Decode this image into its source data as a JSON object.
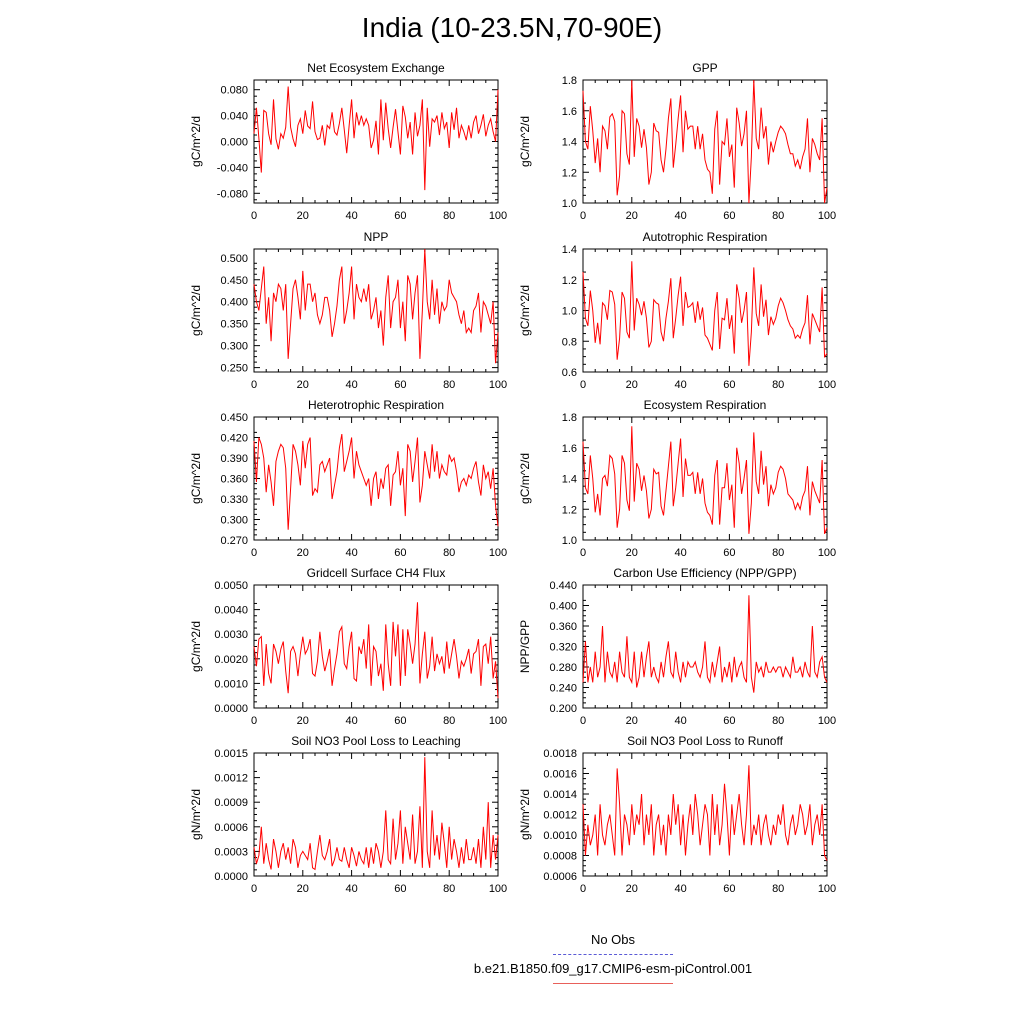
{
  "page_title": "India (10-23.5N,70-90E)",
  "legend": {
    "obs_label": "No Obs",
    "obs_color": "#5b5bd6",
    "model_label": "b.e21.B1850.f09_g17.CMIP6-esm-piControl.001",
    "model_color": "#e8605a"
  },
  "line_color": "#ff0000",
  "chart_data": [
    {
      "type": "line",
      "title": "Net Ecosystem Exchange",
      "ylabel": "gC/m^2/d",
      "xlim": [
        0,
        100
      ],
      "ylim": [
        -0.095,
        0.095
      ],
      "x_ticks": [
        0,
        20,
        40,
        60,
        80,
        100
      ],
      "y_ticks": [
        "-0.080",
        "-0.040",
        "0.000",
        "0.040",
        "0.080"
      ],
      "values": [
        0.012,
        0.052,
        0.005,
        -0.048,
        0.048,
        0.045,
        0.012,
        -0.005,
        0.065,
        0.004,
        -0.012,
        0.012,
        0.005,
        0.022,
        0.085,
        0.022,
        0.004,
        -0.008,
        0.025,
        0.035,
        0.012,
        0.048,
        0.024,
        0.02,
        0.062,
        0.015,
        0.003,
        0.005,
        0.025,
        -0.006,
        0.025,
        0.02,
        0.045,
        0.015,
        0.01,
        0.028,
        0.052,
        0.018,
        -0.018,
        0.025,
        0.065,
        0.005,
        0.045,
        0.025,
        0.04,
        0.025,
        0.035,
        0.025,
        -0.01,
        0.002,
        0.032,
        -0.02,
        0.065,
        0.002,
        0.06,
        0.02,
        -0.01,
        0.022,
        0.05,
        0.015,
        -0.02,
        0.055,
        0.038,
        0.005,
        0.03,
        -0.02,
        0.045,
        0.008,
        0.025,
        0.065,
        -0.075,
        0.052,
        -0.008,
        0.035,
        0.03,
        0.04,
        0.01,
        0.045,
        0.02,
        0.03,
        -0.01,
        0.045,
        0.018,
        0.052,
        0.005,
        0.025,
        0.015,
        0.002,
        0.025,
        0.005,
        0.03,
        0.04,
        0.012,
        0.025,
        0.042,
        0.008,
        0.025,
        0.035,
        0.015,
        0.0,
        0.08
      ]
    },
    {
      "type": "line",
      "title": "GPP",
      "ylabel": "gC/m^2/d",
      "xlim": [
        0,
        100
      ],
      "ylim": [
        1.0,
        1.8
      ],
      "x_ticks": [
        0,
        20,
        40,
        60,
        80,
        100
      ],
      "y_ticks": [
        "1.0",
        "1.2",
        "1.4",
        "1.6",
        "1.8"
      ],
      "values": [
        1.73,
        1.4,
        1.35,
        1.63,
        1.47,
        1.26,
        1.42,
        1.2,
        1.5,
        1.47,
        1.35,
        1.56,
        1.58,
        1.53,
        1.05,
        1.18,
        1.6,
        1.58,
        1.32,
        1.25,
        1.8,
        1.3,
        1.55,
        1.5,
        1.36,
        1.48,
        1.36,
        1.12,
        1.2,
        1.52,
        1.47,
        1.46,
        1.28,
        1.2,
        1.35,
        1.55,
        1.68,
        1.23,
        1.38,
        1.55,
        1.7,
        1.33,
        1.6,
        1.48,
        1.5,
        1.5,
        1.35,
        1.5,
        1.35,
        1.45,
        1.28,
        1.22,
        1.2,
        1.06,
        1.48,
        1.6,
        1.12,
        1.4,
        1.38,
        1.55,
        1.3,
        1.38,
        1.1,
        1.62,
        1.52,
        1.37,
        1.45,
        1.6,
        1.0,
        1.3,
        1.8,
        1.42,
        1.35,
        1.62,
        1.42,
        1.5,
        1.25,
        1.4,
        1.33,
        1.4,
        1.46,
        1.5,
        1.48,
        1.45,
        1.38,
        1.32,
        1.32,
        1.24,
        1.28,
        1.22,
        1.3,
        1.35,
        1.55,
        1.2,
        1.42,
        1.38,
        1.32,
        1.28,
        1.55,
        1.0,
        1.1
      ]
    },
    {
      "type": "line",
      "title": "NPP",
      "ylabel": "gC/m^2/d",
      "xlim": [
        0,
        100
      ],
      "ylim": [
        0.24,
        0.52
      ],
      "x_ticks": [
        0,
        20,
        40,
        60,
        80,
        100
      ],
      "y_ticks": [
        "0.250",
        "0.300",
        "0.350",
        "0.400",
        "0.450",
        "0.500"
      ],
      "values": [
        0.44,
        0.4,
        0.38,
        0.43,
        0.48,
        0.35,
        0.41,
        0.31,
        0.42,
        0.4,
        0.44,
        0.43,
        0.38,
        0.44,
        0.27,
        0.35,
        0.43,
        0.45,
        0.41,
        0.36,
        0.47,
        0.38,
        0.44,
        0.44,
        0.4,
        0.42,
        0.37,
        0.35,
        0.37,
        0.41,
        0.41,
        0.38,
        0.32,
        0.35,
        0.39,
        0.45,
        0.48,
        0.35,
        0.38,
        0.42,
        0.48,
        0.36,
        0.44,
        0.41,
        0.4,
        0.43,
        0.4,
        0.44,
        0.36,
        0.38,
        0.41,
        0.34,
        0.38,
        0.3,
        0.41,
        0.46,
        0.34,
        0.4,
        0.41,
        0.45,
        0.34,
        0.4,
        0.31,
        0.46,
        0.44,
        0.36,
        0.42,
        0.46,
        0.27,
        0.38,
        0.52,
        0.4,
        0.36,
        0.45,
        0.37,
        0.43,
        0.35,
        0.4,
        0.38,
        0.39,
        0.45,
        0.42,
        0.41,
        0.4,
        0.37,
        0.35,
        0.38,
        0.33,
        0.34,
        0.33,
        0.38,
        0.39,
        0.42,
        0.33,
        0.4,
        0.39,
        0.37,
        0.35,
        0.4,
        0.26,
        0.33
      ]
    },
    {
      "type": "line",
      "title": "Autotrophic Respiration",
      "ylabel": "gC/m^2/d",
      "xlim": [
        0,
        100
      ],
      "ylim": [
        0.6,
        1.4
      ],
      "x_ticks": [
        0,
        20,
        40,
        60,
        80,
        100
      ],
      "y_ticks": [
        "0.6",
        "0.8",
        "1.0",
        "1.2",
        "1.4"
      ],
      "values": [
        1.25,
        0.95,
        0.9,
        1.13,
        1.0,
        0.79,
        0.92,
        0.78,
        1.05,
        1.03,
        0.94,
        1.13,
        1.12,
        1.04,
        0.68,
        0.82,
        1.12,
        1.08,
        0.86,
        0.82,
        1.32,
        0.87,
        1.08,
        1.04,
        0.97,
        1.06,
        0.95,
        0.76,
        0.8,
        1.07,
        1.05,
        1.04,
        0.86,
        0.8,
        0.95,
        1.06,
        1.21,
        0.82,
        0.95,
        1.1,
        1.22,
        0.9,
        1.12,
        1.02,
        1.03,
        1.05,
        0.92,
        1.06,
        0.94,
        1.02,
        0.84,
        0.82,
        0.78,
        0.74,
        1.0,
        1.12,
        0.75,
        0.95,
        0.94,
        1.08,
        0.88,
        0.97,
        0.72,
        1.17,
        1.08,
        0.92,
        1.0,
        1.12,
        0.64,
        0.86,
        1.28,
        0.98,
        0.9,
        1.17,
        0.96,
        1.07,
        0.84,
        0.96,
        0.91,
        0.95,
        1.03,
        1.08,
        1.05,
        1.0,
        0.94,
        0.9,
        0.88,
        0.82,
        0.84,
        0.82,
        0.88,
        0.92,
        1.1,
        0.78,
        0.98,
        0.94,
        0.9,
        0.86,
        1.15,
        0.7,
        0.72
      ]
    },
    {
      "type": "line",
      "title": "Heterotrophic Respiration",
      "ylabel": "gC/m^2/d",
      "xlim": [
        0,
        100
      ],
      "ylim": [
        0.27,
        0.45
      ],
      "x_ticks": [
        0,
        20,
        40,
        60,
        80,
        100
      ],
      "y_ticks": [
        "0.270",
        "0.300",
        "0.330",
        "0.360",
        "0.390",
        "0.420",
        "0.450"
      ],
      "values": [
        0.415,
        0.355,
        0.42,
        0.41,
        0.39,
        0.34,
        0.38,
        0.355,
        0.32,
        0.385,
        0.4,
        0.41,
        0.405,
        0.375,
        0.285,
        0.345,
        0.41,
        0.4,
        0.38,
        0.35,
        0.415,
        0.375,
        0.41,
        0.42,
        0.335,
        0.345,
        0.34,
        0.38,
        0.385,
        0.37,
        0.38,
        0.39,
        0.33,
        0.35,
        0.37,
        0.405,
        0.425,
        0.37,
        0.385,
        0.4,
        0.42,
        0.36,
        0.4,
        0.38,
        0.37,
        0.36,
        0.35,
        0.36,
        0.32,
        0.36,
        0.37,
        0.33,
        0.36,
        0.345,
        0.375,
        0.38,
        0.32,
        0.365,
        0.37,
        0.4,
        0.35,
        0.375,
        0.305,
        0.41,
        0.4,
        0.355,
        0.385,
        0.42,
        0.325,
        0.35,
        0.4,
        0.38,
        0.36,
        0.41,
        0.37,
        0.4,
        0.36,
        0.38,
        0.37,
        0.365,
        0.395,
        0.385,
        0.39,
        0.37,
        0.34,
        0.355,
        0.36,
        0.35,
        0.365,
        0.36,
        0.375,
        0.385,
        0.355,
        0.335,
        0.38,
        0.36,
        0.37,
        0.345,
        0.375,
        0.32,
        0.29
      ]
    },
    {
      "type": "line",
      "title": "Ecosystem Respiration",
      "ylabel": "gC/m^2/d",
      "xlim": [
        0,
        100
      ],
      "ylim": [
        1.0,
        1.8
      ],
      "x_ticks": [
        0,
        20,
        40,
        60,
        80,
        100
      ],
      "y_ticks": [
        "1.0",
        "1.2",
        "1.4",
        "1.6",
        "1.8"
      ],
      "values": [
        1.64,
        1.34,
        1.3,
        1.55,
        1.4,
        1.18,
        1.3,
        1.16,
        1.4,
        1.42,
        1.35,
        1.55,
        1.53,
        1.43,
        1.08,
        1.2,
        1.55,
        1.5,
        1.26,
        1.19,
        1.74,
        1.25,
        1.5,
        1.46,
        1.32,
        1.42,
        1.32,
        1.14,
        1.2,
        1.46,
        1.43,
        1.44,
        1.22,
        1.16,
        1.32,
        1.48,
        1.64,
        1.22,
        1.34,
        1.5,
        1.66,
        1.28,
        1.53,
        1.42,
        1.42,
        1.44,
        1.3,
        1.44,
        1.3,
        1.4,
        1.24,
        1.18,
        1.16,
        1.1,
        1.42,
        1.52,
        1.1,
        1.34,
        1.34,
        1.5,
        1.26,
        1.36,
        1.08,
        1.6,
        1.5,
        1.3,
        1.4,
        1.52,
        1.04,
        1.24,
        1.7,
        1.38,
        1.3,
        1.58,
        1.36,
        1.48,
        1.22,
        1.36,
        1.3,
        1.34,
        1.44,
        1.48,
        1.46,
        1.4,
        1.3,
        1.28,
        1.26,
        1.2,
        1.24,
        1.2,
        1.28,
        1.32,
        1.48,
        1.16,
        1.38,
        1.32,
        1.28,
        1.24,
        1.52,
        1.04,
        1.08
      ]
    },
    {
      "type": "line",
      "title": "Gridcell Surface CH4 Flux",
      "ylabel": "gC/m^2/d",
      "xlim": [
        0,
        100
      ],
      "ylim": [
        0.0,
        0.005
      ],
      "x_ticks": [
        0,
        20,
        40,
        60,
        80,
        100
      ],
      "y_ticks": [
        "0.0000",
        "0.0010",
        "0.0020",
        "0.0030",
        "0.0040",
        "0.0050"
      ],
      "values": [
        0.0025,
        0.0017,
        0.0028,
        0.0029,
        0.0009,
        0.0026,
        0.0014,
        0.001,
        0.0026,
        0.0023,
        0.0018,
        0.0024,
        0.0027,
        0.0015,
        0.0006,
        0.0023,
        0.0025,
        0.0022,
        0.0013,
        0.0022,
        0.0029,
        0.0022,
        0.0024,
        0.0028,
        0.0014,
        0.0013,
        0.0019,
        0.0031,
        0.0021,
        0.0015,
        0.0019,
        0.0024,
        0.0009,
        0.0016,
        0.0022,
        0.0031,
        0.0033,
        0.0018,
        0.0016,
        0.0025,
        0.0031,
        0.0012,
        0.0011,
        0.0025,
        0.0022,
        0.0028,
        0.0016,
        0.0034,
        0.0009,
        0.0025,
        0.0023,
        0.0013,
        0.0018,
        0.0007,
        0.0034,
        0.0018,
        0.0009,
        0.0035,
        0.0021,
        0.0034,
        0.0009,
        0.0032,
        0.0013,
        0.0032,
        0.0026,
        0.0018,
        0.0026,
        0.0043,
        0.001,
        0.0022,
        0.0031,
        0.0012,
        0.0017,
        0.0029,
        0.0015,
        0.0022,
        0.0018,
        0.0021,
        0.0014,
        0.0027,
        0.0016,
        0.0022,
        0.0028,
        0.0021,
        0.0012,
        0.0019,
        0.0017,
        0.002,
        0.0024,
        0.0014,
        0.0022,
        0.0023,
        0.0028,
        0.0009,
        0.0025,
        0.0026,
        0.0018,
        0.0029,
        0.0012,
        0.0019,
        0.0004
      ]
    },
    {
      "type": "line",
      "title": "Carbon Use Efficiency (NPP/GPP)",
      "ylabel": "NPP/GPP",
      "xlim": [
        0,
        100
      ],
      "ylim": [
        0.2,
        0.44
      ],
      "x_ticks": [
        0,
        20,
        40,
        60,
        80,
        100
      ],
      "y_ticks": [
        "0.200",
        "0.240",
        "0.280",
        "0.320",
        "0.360",
        "0.400",
        "0.440"
      ],
      "values": [
        0.25,
        0.33,
        0.25,
        0.28,
        0.25,
        0.31,
        0.26,
        0.28,
        0.36,
        0.25,
        0.31,
        0.27,
        0.26,
        0.29,
        0.25,
        0.31,
        0.27,
        0.26,
        0.34,
        0.26,
        0.25,
        0.31,
        0.24,
        0.26,
        0.31,
        0.26,
        0.3,
        0.33,
        0.26,
        0.28,
        0.26,
        0.25,
        0.29,
        0.26,
        0.3,
        0.33,
        0.27,
        0.26,
        0.31,
        0.27,
        0.25,
        0.29,
        0.26,
        0.29,
        0.28,
        0.28,
        0.29,
        0.27,
        0.26,
        0.28,
        0.33,
        0.26,
        0.25,
        0.29,
        0.26,
        0.29,
        0.32,
        0.25,
        0.28,
        0.26,
        0.29,
        0.25,
        0.3,
        0.26,
        0.28,
        0.29,
        0.26,
        0.25,
        0.42,
        0.26,
        0.23,
        0.29,
        0.27,
        0.28,
        0.26,
        0.29,
        0.27,
        0.27,
        0.28,
        0.27,
        0.28,
        0.28,
        0.26,
        0.28,
        0.27,
        0.26,
        0.3,
        0.27,
        0.27,
        0.28,
        0.26,
        0.29,
        0.27,
        0.26,
        0.36,
        0.27,
        0.26,
        0.29,
        0.3,
        0.26,
        0.25
      ]
    },
    {
      "type": "line",
      "title": "Soil NO3 Pool Loss to Leaching",
      "ylabel": "gN/m^2/d",
      "xlim": [
        0,
        100
      ],
      "ylim": [
        0.0,
        0.0015
      ],
      "x_ticks": [
        0,
        20,
        40,
        60,
        80,
        100
      ],
      "y_ticks": [
        "0.0000",
        "0.0003",
        "0.0006",
        "0.0009",
        "0.0012",
        "0.0015"
      ],
      "values": [
        0.00035,
        0.00015,
        0.00025,
        0.0006,
        0.00015,
        0.0004,
        0.0002,
        8e-05,
        0.00045,
        0.0003,
        0.0001,
        0.0003,
        0.0004,
        0.0002,
        0.00035,
        0.00015,
        0.00045,
        0.00035,
        0.0001,
        0.00025,
        0.0003,
        0.00025,
        0.0002,
        0.0004,
        0.0001,
        8e-05,
        0.0003,
        0.0005,
        0.00025,
        0.0002,
        0.0003,
        0.00045,
        0.00012,
        0.0002,
        0.00035,
        0.0002,
        0.00018,
        0.00035,
        0.0002,
        0.0001,
        0.00035,
        0.00025,
        0.00012,
        0.0003,
        0.0002,
        0.00015,
        0.00035,
        0.0001,
        0.00035,
        0.00015,
        0.0004,
        0.0003,
        0.0001,
        0.0003,
        0.0008,
        0.0002,
        0.00015,
        0.0007,
        0.0002,
        0.0004,
        0.0008,
        0.00015,
        0.0006,
        0.0004,
        0.0002,
        0.00075,
        0.00015,
        0.0003,
        0.00085,
        0.0001,
        0.00145,
        0.0003,
        0.0001,
        0.0008,
        0.00025,
        0.0005,
        0.0002,
        0.00065,
        0.0004,
        0.0001,
        0.0006,
        0.0002,
        0.00045,
        0.0003,
        0.0001,
        0.00035,
        0.00015,
        0.00045,
        0.0002,
        0.0002,
        0.00035,
        0.00015,
        0.00045,
        0.0001,
        0.0006,
        0.0002,
        0.0009,
        0.0001,
        0.0005,
        0.0002,
        0.0005
      ]
    },
    {
      "type": "line",
      "title": "Soil NO3 Pool Loss to Runoff",
      "ylabel": "gN/m^2/d",
      "xlim": [
        0,
        100
      ],
      "ylim": [
        0.0006,
        0.0018
      ],
      "x_ticks": [
        0,
        20,
        40,
        60,
        80,
        100
      ],
      "y_ticks": [
        "0.0006",
        "0.0008",
        "0.0010",
        "0.0012",
        "0.0014",
        "0.0016",
        "0.0018"
      ],
      "values": [
        0.0013,
        0.0008,
        0.0011,
        0.0009,
        0.001,
        0.0012,
        0.0008,
        0.0013,
        0.001,
        0.0009,
        0.0011,
        0.0012,
        0.001,
        0.0008,
        0.00165,
        0.0013,
        0.0008,
        0.0012,
        0.0011,
        0.0009,
        0.0013,
        0.001,
        0.0012,
        0.0011,
        0.0014,
        0.0009,
        0.0012,
        0.001,
        0.0013,
        0.0008,
        0.0011,
        0.0012,
        0.0009,
        0.0011,
        0.0008,
        0.0012,
        0.001,
        0.0014,
        0.0011,
        0.0013,
        0.0009,
        0.0012,
        0.0008,
        0.0011,
        0.0013,
        0.001,
        0.0014,
        0.0012,
        0.0009,
        0.0011,
        0.0013,
        0.0012,
        0.0008,
        0.0014,
        0.001,
        0.0013,
        0.0009,
        0.0011,
        0.0015,
        0.0012,
        0.0008,
        0.0013,
        0.001,
        0.0012,
        0.0014,
        0.0011,
        0.0009,
        0.0012,
        0.00168,
        0.0009,
        0.0011,
        0.001,
        0.0012,
        0.0009,
        0.0011,
        0.0012,
        0.001,
        0.0009,
        0.0011,
        0.001,
        0.0012,
        0.0011,
        0.0013,
        0.001,
        0.0009,
        0.0011,
        0.0012,
        0.001,
        0.0011,
        0.0013,
        0.0012,
        0.001,
        0.0011,
        0.0013,
        0.0009,
        0.0011,
        0.0012,
        0.001,
        0.0013,
        0.0008,
        0.00075
      ]
    }
  ]
}
